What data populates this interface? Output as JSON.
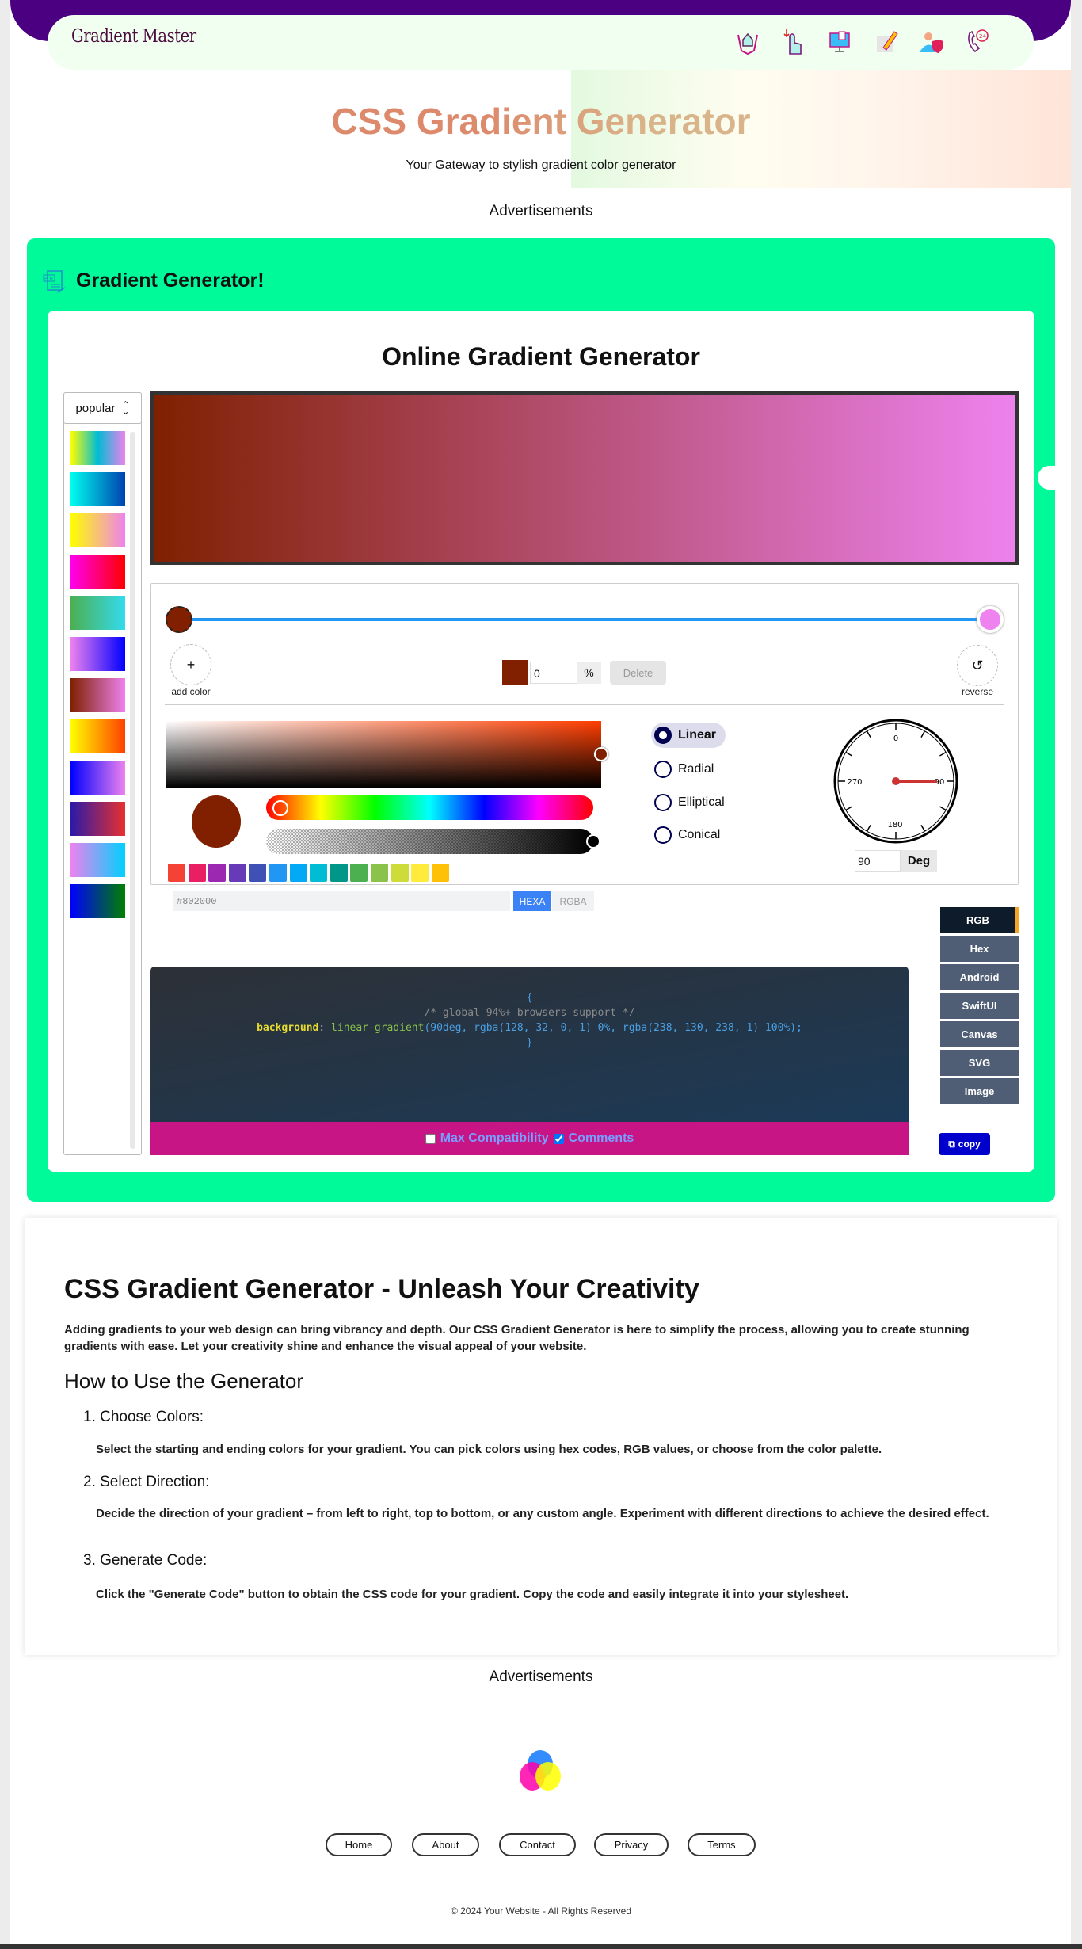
{
  "nav": {
    "logo": "Gradient Master",
    "icons": [
      "home-hands-icon",
      "hand-pointer-icon",
      "monitor-icon",
      "note-pencil-icon",
      "user-shield-icon",
      "phone-24-icon"
    ]
  },
  "hero": {
    "title": "CSS Gradient Generator",
    "subtitle": "Your Gateway to stylish gradient color generator"
  },
  "ads_label": "Advertisements",
  "generator": {
    "section_title": "Gradient Generator!",
    "title": "Online Gradient Generator",
    "preset_select": "popular",
    "presets": [
      [
        "#ffff00",
        "#00bcd4",
        "#ee82ee"
      ],
      [
        "#00ffee",
        "#0040b0"
      ],
      [
        "#ffff00",
        "#ee82ee"
      ],
      [
        "#ff00ee",
        "#ff0000"
      ],
      [
        "#4caf50",
        "#33dbee"
      ],
      [
        "#ee82ee",
        "#0000ff"
      ],
      [
        "#802000",
        "#ee82ee"
      ],
      [
        "#ffff00",
        "#ff4000"
      ],
      [
        "#0000ff",
        "#ee82ee"
      ],
      [
        "#2a1aa8",
        "#e83030"
      ],
      [
        "#ee82ee",
        "#00d0ff"
      ],
      [
        "#0000ff",
        "#008000"
      ]
    ],
    "gradient": {
      "angle": 90,
      "stops": [
        {
          "color": "#802000",
          "position": 0
        },
        {
          "color": "#ee82ee",
          "position": 100
        }
      ]
    },
    "add_color": "add color",
    "reverse": "reverse",
    "selected_stop": {
      "color": "#802000",
      "position": "0",
      "unit": "%"
    },
    "delete": "Delete",
    "palette": [
      "#f44336",
      "#e91e63",
      "#9c27b0",
      "#673ab7",
      "#3f51b5",
      "#2196f3",
      "#03a9f4",
      "#00bcd4",
      "#009688",
      "#4caf50",
      "#8bc34a",
      "#cddc39",
      "#ffeb3b",
      "#ffc107"
    ],
    "hex_value": "#802000",
    "hexa": "HEXA",
    "rgba": "RGBA",
    "types": [
      "Linear",
      "Radial",
      "Elliptical",
      "Conical"
    ],
    "selected_type": "Linear",
    "dial_labels": [
      "0",
      "90",
      "180",
      "270"
    ],
    "angle_value": "90",
    "angle_unit": "Deg",
    "formats": [
      "RGB",
      "Hex",
      "Android",
      "SwiftUI",
      "Canvas",
      "SVG",
      "Image"
    ],
    "selected_format": "RGB",
    "code": {
      "open": "{",
      "comment": "/* global 94%+ browsers support */",
      "prop": "background",
      "colon": ": ",
      "func": "linear-gradient",
      "args": "(90deg, rgba(128, 32, 0, 1) 0%, rgba(238, 130, 238, 1) 100%);",
      "close": "}"
    },
    "max_compat": {
      "label": "Max Compatibility",
      "checked": false
    },
    "comments": {
      "label": "Comments",
      "checked": true
    },
    "copy": "copy"
  },
  "article": {
    "title": "CSS Gradient Generator - Unleash Your Creativity",
    "intro": "Adding gradients to your web design can bring vibrancy and depth. Our CSS Gradient Generator is here to simplify the process, allowing you to create stunning gradients with ease. Let your creativity shine and enhance the visual appeal of your website.",
    "subtitle": "How to Use the Generator",
    "steps": [
      {
        "title": "1. Choose Colors:",
        "text": "Select the starting and ending colors for your gradient. You can pick colors using hex codes, RGB values, or choose from the color palette."
      },
      {
        "title": "2. Select Direction:",
        "text": "Decide the direction of your gradient – from left to right, top to bottom, or any custom angle. Experiment with different directions to achieve the desired effect."
      },
      {
        "title": "3. Generate Code:",
        "text": "Click the \"Generate Code\" button to obtain the CSS code for your gradient. Copy the code and easily integrate it into your stylesheet."
      }
    ]
  },
  "footer": {
    "links": [
      "Home",
      "About",
      "Contact",
      "Privacy",
      "Terms"
    ],
    "copyright": "© 2024 Your Website - All Rights Reserved"
  }
}
